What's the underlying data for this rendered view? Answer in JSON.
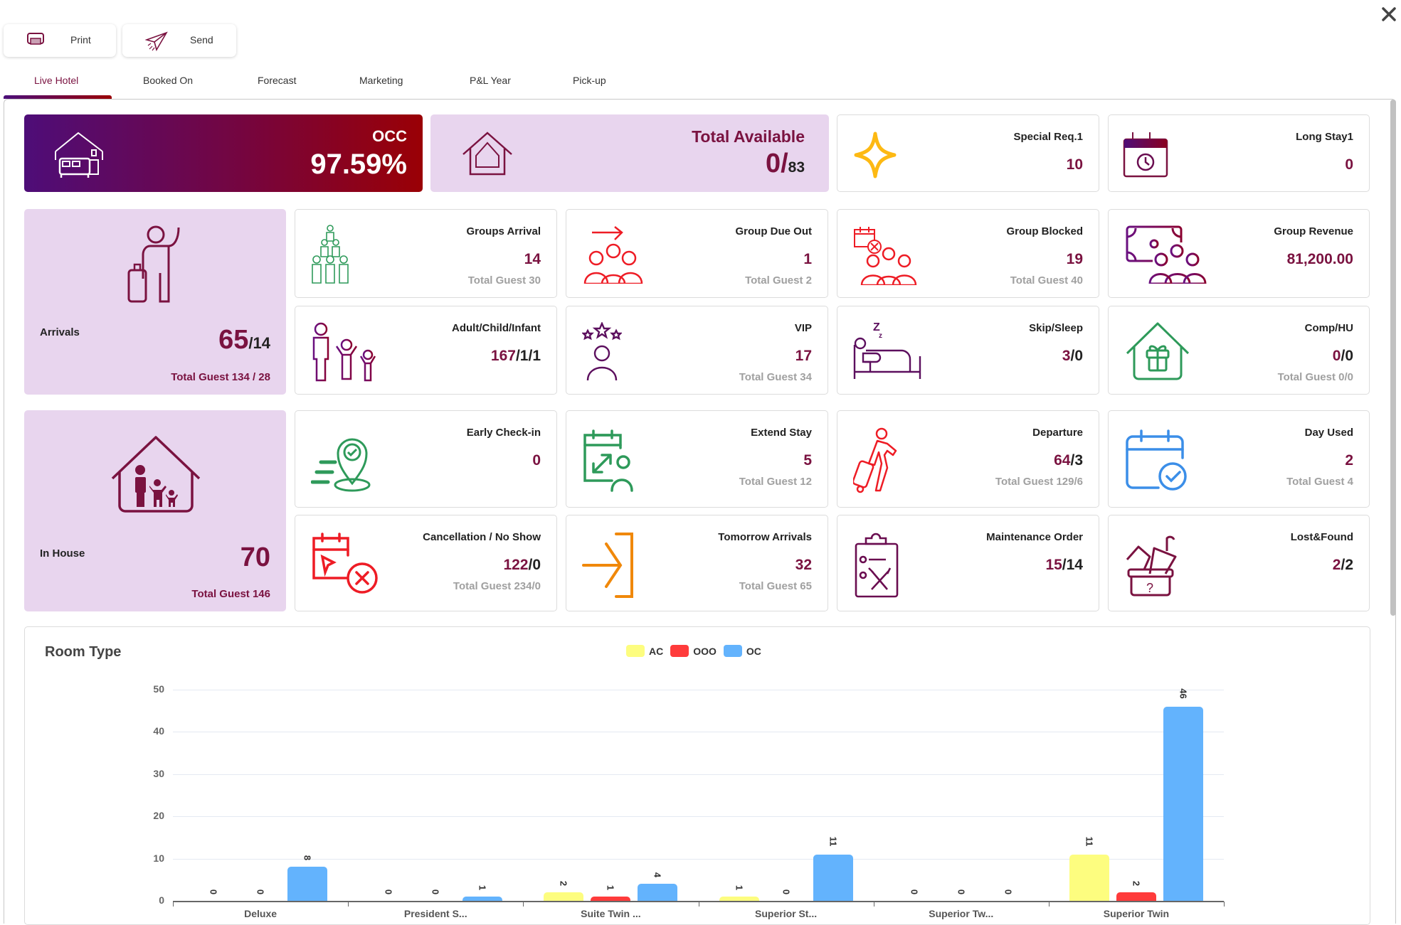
{
  "toolbar": {
    "print_label": "Print",
    "send_label": "Send",
    "close_icon": "close-icon"
  },
  "tabs": [
    {
      "label": "Live Hotel",
      "active": true
    },
    {
      "label": "Booked On"
    },
    {
      "label": "Forecast"
    },
    {
      "label": "Marketing"
    },
    {
      "label": "P&L Year"
    },
    {
      "label": "Pick-up"
    }
  ],
  "occ": {
    "label": "OCC",
    "value": "97.59%",
    "icon": "hotel-bed-icon"
  },
  "total_available": {
    "label": "Total Available",
    "value": "0/",
    "total": "83",
    "icon": "house-icon"
  },
  "special_req": {
    "label": "Special Req.1",
    "value": "10",
    "icon": "sparkle-icon"
  },
  "long_stay": {
    "label": "Long Stay1",
    "value": "0",
    "icon": "calendar-clock-icon"
  },
  "arrivals": {
    "label": "Arrivals",
    "value": "65",
    "secondary": "/14",
    "total_guest": "Total Guest  134 / 28",
    "icon": "traveler-icon"
  },
  "groups_arrival": {
    "label": "Groups Arrival",
    "value": "14",
    "sub": "Total Guest  30"
  },
  "group_due_out": {
    "label": "Group Due Out",
    "value": "1",
    "sub": "Total Guest  2"
  },
  "group_blocked": {
    "label": "Group Blocked",
    "value": "19",
    "sub": "Total Guest  40"
  },
  "group_revenue": {
    "label": "Group Revenue",
    "value": "81,200.00"
  },
  "adult_child_infant": {
    "label": "Adult/Child/Infant",
    "value": "167",
    "secondary": "/1/1"
  },
  "vip": {
    "label": "VIP",
    "value": "17",
    "sub": "Total Guest  34"
  },
  "skip_sleep": {
    "label": "Skip/Sleep",
    "value": "3",
    "secondary": "/0"
  },
  "comp_hu": {
    "label": "Comp/HU",
    "value": "0",
    "secondary": "/0",
    "sub": "Total Guest 0/0"
  },
  "in_house": {
    "label": "In House",
    "value": "70",
    "total_guest": "Total Guest  146",
    "icon": "family-house-icon"
  },
  "early_checkin": {
    "label": "Early Check-in",
    "value": "0"
  },
  "extend_stay": {
    "label": "Extend Stay",
    "value": "5",
    "sub": "Total Guest  12"
  },
  "departure": {
    "label": "Departure",
    "value": "64",
    "secondary": "/3",
    "sub": "Total Guest  129/6"
  },
  "day_used": {
    "label": "Day Used",
    "value": "2",
    "sub": "Total Guest 4"
  },
  "cancellation": {
    "label": "Cancellation / No Show",
    "value": "122",
    "secondary": "/0",
    "sub": "Total Guest  234/0"
  },
  "tomorrow_arrivals": {
    "label": "Tomorrow Arrivals",
    "value": "32",
    "sub": "Total Guest  65"
  },
  "maintenance": {
    "label": "Maintenance Order",
    "value": "15",
    "secondary": "/14"
  },
  "lost_found": {
    "label": "Lost&Found",
    "value": "2",
    "secondary": "/2"
  },
  "chart_data": {
    "type": "bar",
    "title": "Room Type",
    "categories": [
      "Deluxe",
      "President S...",
      "Suite Twin ...",
      "Superior St...",
      "Superior Tw...",
      "Superior Twin"
    ],
    "series": [
      {
        "name": "AC",
        "color": "#fdfd7f",
        "values": [
          0,
          0,
          2,
          1,
          0,
          11
        ]
      },
      {
        "name": "OOO",
        "color": "#ff3b3b",
        "values": [
          0,
          0,
          1,
          0,
          0,
          2
        ]
      },
      {
        "name": "OC",
        "color": "#63b3fd",
        "values": [
          8,
          1,
          4,
          11,
          0,
          46
        ]
      }
    ],
    "yticks": [
      "0",
      "10",
      "20",
      "30",
      "40",
      "50"
    ],
    "ylim": [
      0,
      50
    ],
    "xlabel": "",
    "ylabel": "",
    "grid": true,
    "legend_position": "top"
  }
}
